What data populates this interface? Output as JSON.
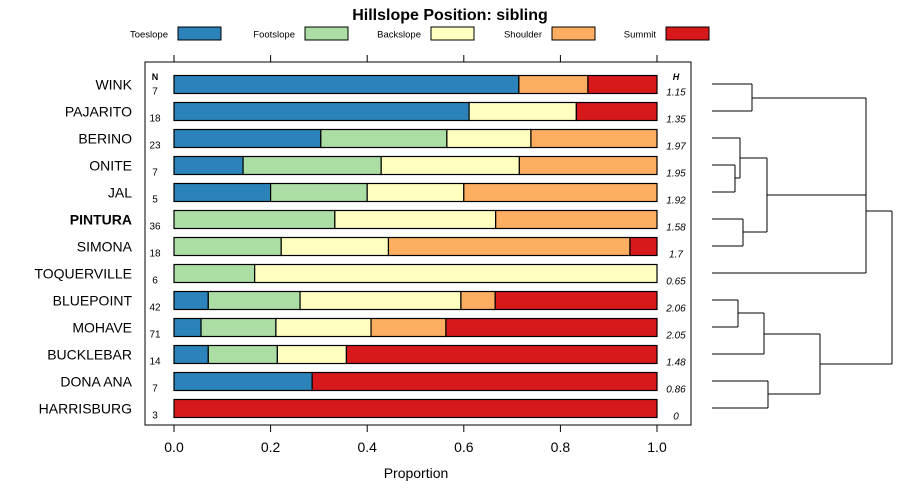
{
  "chart_data": {
    "type": "stacked-bar",
    "title": "Hillslope Position: sibling",
    "xlabel": "Proportion",
    "xlim": [
      0,
      1
    ],
    "ticks": [
      "0.0",
      "0.2",
      "0.4",
      "0.6",
      "0.8",
      "1.0"
    ],
    "tick_values": [
      0,
      0.2,
      0.4,
      0.6,
      0.8,
      1.0
    ],
    "n_header": "N",
    "h_header": "H",
    "legend": [
      {
        "name": "Toeslope",
        "color": "#2b83ba"
      },
      {
        "name": "Footslope",
        "color": "#abdda4"
      },
      {
        "name": "Backslope",
        "color": "#ffffbf"
      },
      {
        "name": "Shoulder",
        "color": "#fdae61"
      },
      {
        "name": "Summit",
        "color": "#d7191c"
      }
    ],
    "rows": [
      {
        "label": "WINK",
        "n": "7",
        "h": "1.15",
        "bold": false,
        "values": [
          0.714,
          0,
          0,
          0.143,
          0.143
        ]
      },
      {
        "label": "PAJARITO",
        "n": "18",
        "h": "1.35",
        "bold": false,
        "values": [
          0.611,
          0,
          0.222,
          0,
          0.167
        ]
      },
      {
        "label": "BERINO",
        "n": "23",
        "h": "1.97",
        "bold": false,
        "values": [
          0.304,
          0.261,
          0.174,
          0.261,
          0
        ]
      },
      {
        "label": "ONITE",
        "n": "7",
        "h": "1.95",
        "bold": false,
        "values": [
          0.143,
          0.286,
          0.286,
          0.285,
          0
        ]
      },
      {
        "label": "JAL",
        "n": "5",
        "h": "1.92",
        "bold": false,
        "values": [
          0.2,
          0.2,
          0.2,
          0.4,
          0
        ]
      },
      {
        "label": "PINTURA",
        "n": "36",
        "h": "1.58",
        "bold": true,
        "values": [
          0,
          0.333,
          0.333,
          0.334,
          0
        ]
      },
      {
        "label": "SIMONA",
        "n": "18",
        "h": "1.7",
        "bold": false,
        "values": [
          0,
          0.222,
          0.222,
          0.5,
          0.056
        ]
      },
      {
        "label": "TOQUERVILLE",
        "n": "6",
        "h": "0.65",
        "bold": false,
        "values": [
          0,
          0.167,
          0.833,
          0,
          0
        ]
      },
      {
        "label": "BLUEPOINT",
        "n": "42",
        "h": "2.06",
        "bold": false,
        "values": [
          0.071,
          0.19,
          0.333,
          0.071,
          0.335
        ]
      },
      {
        "label": "MOHAVE",
        "n": "71",
        "h": "2.05",
        "bold": false,
        "values": [
          0.056,
          0.155,
          0.197,
          0.155,
          0.437
        ]
      },
      {
        "label": "BUCKLEBAR",
        "n": "14",
        "h": "1.48",
        "bold": false,
        "values": [
          0.071,
          0.143,
          0.143,
          0,
          0.643
        ]
      },
      {
        "label": "DONA ANA",
        "n": "7",
        "h": "0.86",
        "bold": false,
        "values": [
          0.286,
          0,
          0,
          0,
          0.714
        ]
      },
      {
        "label": "HARRISBURG",
        "n": "3",
        "h": "0",
        "bold": false,
        "values": [
          0,
          0,
          0,
          0,
          1.0
        ]
      }
    ]
  }
}
